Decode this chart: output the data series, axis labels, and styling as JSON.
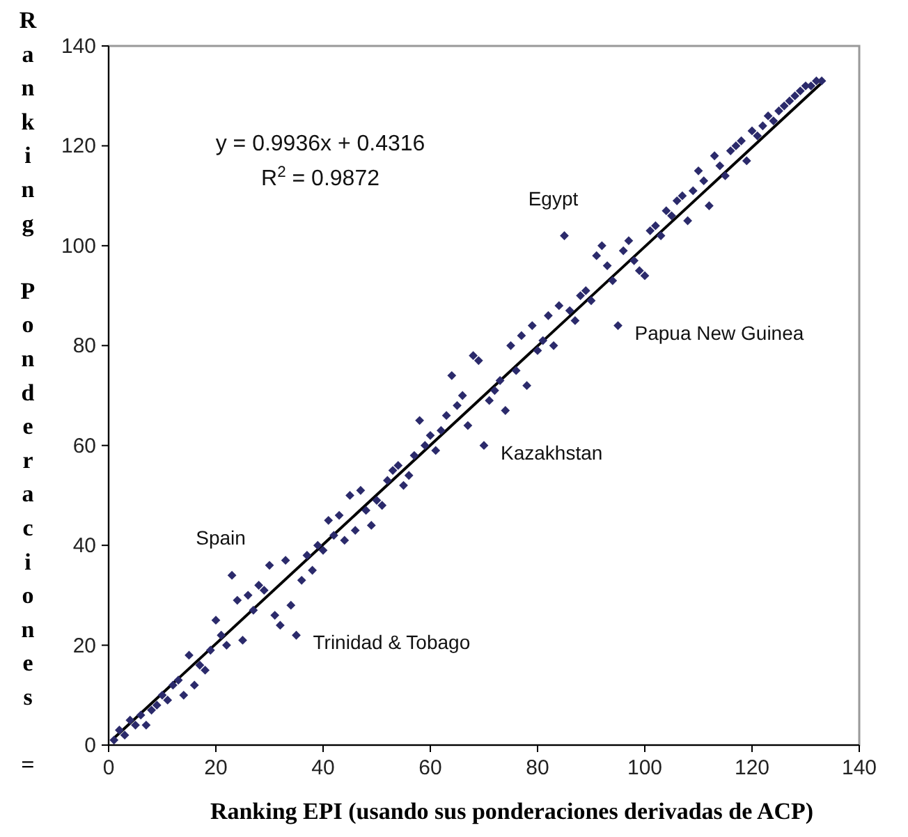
{
  "chart_data": {
    "type": "scatter",
    "xlabel": "Ranking EPI (usando sus ponderaciones derivadas de ACP)",
    "ylabel": "Ranking Ponderaciones =",
    "xlim": [
      0,
      140
    ],
    "ylim": [
      0,
      140
    ],
    "xticks": [
      0,
      20,
      40,
      60,
      80,
      100,
      120,
      140
    ],
    "yticks": [
      0,
      20,
      40,
      60,
      80,
      100,
      120,
      140
    ],
    "grid": false,
    "marker": "diamond",
    "annotations": [
      "y = 0.9936x + 0.4316",
      "R$^{2}$ = 0.9872",
      {
        "text": "Egypt",
        "x": 85,
        "y": 102
      },
      {
        "text": "Papua New Guinea",
        "x": 95,
        "y": 84
      },
      {
        "text": "Kazakhstan",
        "x": 70,
        "y": 60
      },
      {
        "text": "Spain",
        "x": 23,
        "y": 34
      },
      {
        "text": "Trinidad & Tobago",
        "x": 35,
        "y": 22
      }
    ],
    "series": [
      {
        "color": "#2b2a6b",
        "x": [
          1,
          2,
          3,
          4,
          5,
          6,
          7,
          8,
          9,
          10,
          11,
          12,
          13,
          14,
          15,
          16,
          17,
          18,
          19,
          20,
          21,
          22,
          23,
          24,
          25,
          26,
          27,
          28,
          29,
          30,
          31,
          32,
          33,
          34,
          35,
          36,
          37,
          38,
          39,
          40,
          41,
          42,
          43,
          44,
          45,
          46,
          47,
          48,
          49,
          50,
          51,
          52,
          53,
          54,
          55,
          56,
          57,
          58,
          59,
          60,
          61,
          62,
          63,
          64,
          65,
          66,
          67,
          68,
          69,
          70,
          71,
          72,
          73,
          74,
          75,
          76,
          77,
          78,
          79,
          80,
          81,
          82,
          83,
          84,
          85,
          86,
          87,
          88,
          89,
          90,
          91,
          92,
          93,
          94,
          95,
          96,
          97,
          98,
          99,
          100,
          101,
          102,
          103,
          104,
          105,
          106,
          107,
          108,
          109,
          110,
          111,
          112,
          113,
          114,
          115,
          116,
          117,
          118,
          119,
          120,
          121,
          122,
          123,
          124,
          125,
          126,
          127,
          128,
          129,
          130,
          131,
          132,
          133
        ],
        "values": [
          1,
          3,
          2,
          5,
          4,
          6,
          4,
          7,
          8,
          10,
          9,
          12,
          13,
          10,
          18,
          12,
          16,
          15,
          19,
          25,
          22,
          20,
          34,
          29,
          21,
          30,
          27,
          32,
          31,
          36,
          26,
          24,
          37,
          28,
          22,
          33,
          38,
          35,
          40,
          39,
          45,
          42,
          46,
          41,
          50,
          43,
          51,
          47,
          44,
          49,
          48,
          53,
          55,
          56,
          52,
          54,
          58,
          65,
          60,
          62,
          59,
          63,
          66,
          74,
          68,
          70,
          64,
          78,
          77,
          60,
          69,
          71,
          73,
          67,
          80,
          75,
          82,
          72,
          84,
          79,
          81,
          86,
          80,
          88,
          102,
          87,
          85,
          90,
          91,
          89,
          98,
          100,
          96,
          93,
          84,
          99,
          101,
          97,
          95,
          94,
          103,
          104,
          102,
          107,
          106,
          109,
          110,
          105,
          111,
          115,
          113,
          108,
          118,
          116,
          114,
          119,
          120,
          121,
          117,
          123,
          122,
          124,
          126,
          125,
          127,
          128,
          129,
          130,
          131,
          132,
          132,
          133,
          133
        ]
      },
      {
        "type": "line",
        "color": "#000000",
        "marker": "none",
        "x": [
          1,
          133
        ],
        "values": [
          1.4,
          132.6
        ]
      }
    ]
  }
}
